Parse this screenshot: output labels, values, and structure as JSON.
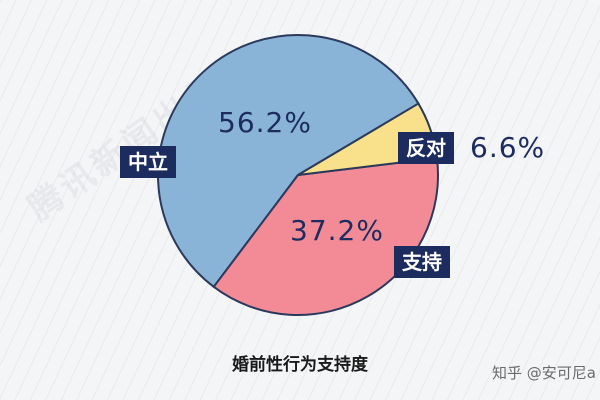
{
  "chart_data": {
    "type": "pie",
    "title": "婚前性行为支持度",
    "categories": [
      "中立",
      "支持",
      "反对"
    ],
    "values": [
      56.2,
      37.2,
      6.6
    ],
    "value_labels": [
      "56.2%",
      "37.2%",
      "6.6%"
    ],
    "colors": [
      "#8ab4d7",
      "#f28b95",
      "#f9e08a"
    ],
    "legend": "none",
    "grid": false
  },
  "credit": "知乎 @安可尼a",
  "watermark": "腾讯新闻出品"
}
